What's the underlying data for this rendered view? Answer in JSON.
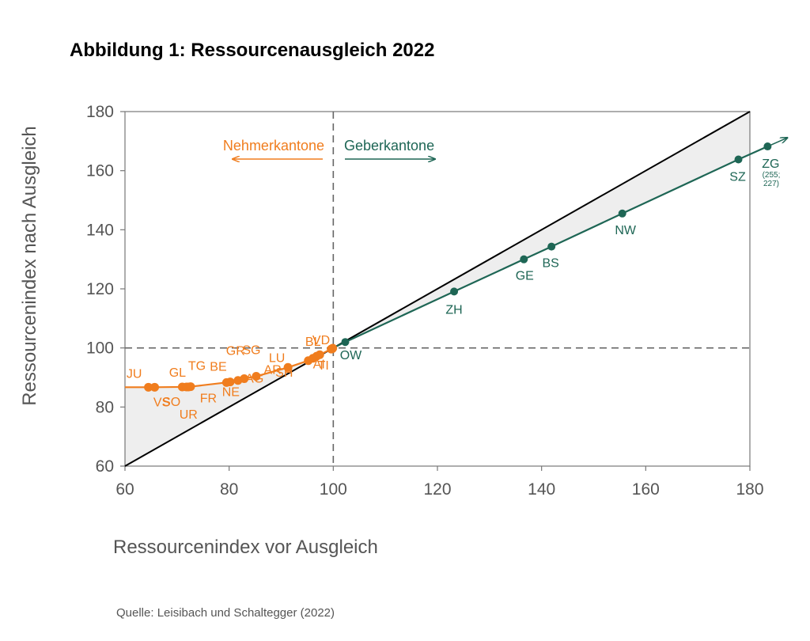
{
  "title": "Abbildung 1: Ressourcenausgleich 2022",
  "source": "Quelle: Leisibach und Schaltegger (2022)",
  "chart_data": {
    "type": "scatter",
    "xlabel": "Ressourcenindex vor Ausgleich",
    "ylabel": "Ressourcenindex nach Ausgleich",
    "xlim": [
      60,
      180
    ],
    "ylim": [
      60,
      180
    ],
    "xticks": [
      "60",
      "80",
      "100",
      "120",
      "140",
      "160",
      "180"
    ],
    "yticks": [
      "60",
      "80",
      "100",
      "120",
      "140",
      "160",
      "180"
    ],
    "grid": false,
    "reference_lines": {
      "x": 100,
      "y": 100,
      "diagonal": true
    },
    "annotations": {
      "nehmer": "Nehmerkantone",
      "geber": "Geberkantone",
      "zg_note_1": "(255;",
      "zg_note_2": "227)"
    },
    "colors": {
      "nehmer": "#f07d1e",
      "geber": "#1e6655",
      "diagonal": "#000000",
      "shade": "#eeeeee"
    },
    "series": [
      {
        "name": "Nehmerkantone",
        "points": [
          {
            "label": "JU",
            "x": 64.5,
            "y": 86.7
          },
          {
            "label": "VS",
            "x": 65.7,
            "y": 86.7
          },
          {
            "label": "GL",
            "x": 71.0,
            "y": 86.8
          },
          {
            "label": "SO",
            "x": 71.8,
            "y": 86.8
          },
          {
            "label": "UR",
            "x": 72.2,
            "y": 86.8
          },
          {
            "label": "TG",
            "x": 72.6,
            "y": 86.9
          },
          {
            "label": "FR",
            "x": 79.5,
            "y": 88.3
          },
          {
            "label": "BE",
            "x": 80.2,
            "y": 88.5
          },
          {
            "label": "NE",
            "x": 81.7,
            "y": 89.0
          },
          {
            "label": "GR",
            "x": 82.9,
            "y": 89.6
          },
          {
            "label": "SG",
            "x": 85.2,
            "y": 90.4
          },
          {
            "label": "LU",
            "x": 91.3,
            "y": 93.4
          },
          {
            "label": "AG",
            "x": 95.2,
            "y": 95.7
          },
          {
            "label": "AR",
            "x": 96.1,
            "y": 96.5
          },
          {
            "label": "SH",
            "x": 96.8,
            "y": 97.2
          },
          {
            "label": "AI",
            "x": 97.4,
            "y": 97.7
          },
          {
            "label": "BL",
            "x": 99.6,
            "y": 99.6
          },
          {
            "label": "VD",
            "x": 99.8,
            "y": 99.7
          },
          {
            "label": "TI",
            "x": 99.9,
            "y": 99.9
          }
        ]
      },
      {
        "name": "Geberkantone",
        "points": [
          {
            "label": "OW",
            "x": 102.3,
            "y": 102.0
          },
          {
            "label": "ZH",
            "x": 123.2,
            "y": 119.1
          },
          {
            "label": "GE",
            "x": 136.6,
            "y": 130.0
          },
          {
            "label": "BS",
            "x": 141.9,
            "y": 134.3
          },
          {
            "label": "NW",
            "x": 155.5,
            "y": 145.5
          },
          {
            "label": "SZ",
            "x": 177.8,
            "y": 163.8
          },
          {
            "label": "ZG",
            "x": 183.4,
            "y": 168.2
          }
        ]
      }
    ]
  }
}
